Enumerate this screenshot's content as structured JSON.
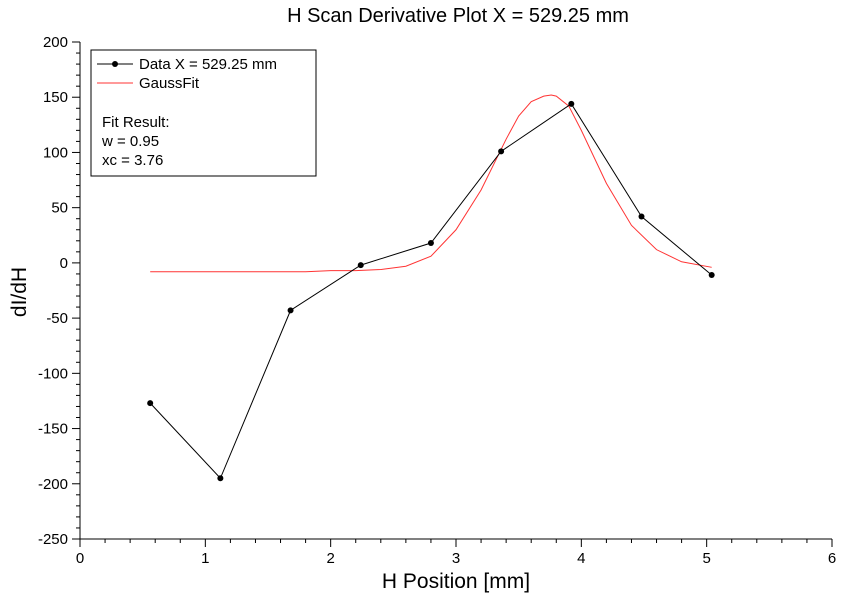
{
  "chart_data": {
    "type": "line",
    "title": "H Scan Derivative Plot X = 529.25 mm",
    "xlabel": "H Position [mm]",
    "ylabel": "dI/dH",
    "xlim": [
      0,
      6
    ],
    "ylim": [
      -250,
      200
    ],
    "x_ticks": [
      0,
      1,
      2,
      3,
      4,
      5,
      6
    ],
    "y_ticks": [
      -250,
      -200,
      -150,
      -100,
      -50,
      0,
      50,
      100,
      150,
      200
    ],
    "grid": false,
    "legend_position": "top-left",
    "series": [
      {
        "name": "Data X = 529.25 mm",
        "color": "#000000",
        "marker": "circle",
        "x": [
          0.56,
          1.12,
          1.68,
          2.24,
          2.8,
          3.36,
          3.92,
          4.48,
          5.04
        ],
        "y": [
          -127,
          -195,
          -43,
          -2,
          18,
          101,
          144,
          42,
          -11
        ]
      },
      {
        "name": "GaussFit",
        "color": "#ff3333",
        "marker": "none",
        "x": [
          0.56,
          1.0,
          1.5,
          1.8,
          2.0,
          2.2,
          2.4,
          2.6,
          2.8,
          3.0,
          3.2,
          3.4,
          3.5,
          3.6,
          3.7,
          3.76,
          3.8,
          3.9,
          4.0,
          4.2,
          4.4,
          4.6,
          4.8,
          5.04
        ],
        "y": [
          -8,
          -8,
          -8,
          -8,
          -7,
          -7,
          -6,
          -3,
          6,
          30,
          66,
          112,
          133,
          146,
          151,
          152,
          151,
          142,
          120,
          72,
          34,
          12,
          1,
          -4
        ]
      }
    ],
    "annotation": {
      "heading": "Fit Result:",
      "lines": [
        "w = 0.95",
        "xc = 3.76"
      ]
    }
  }
}
